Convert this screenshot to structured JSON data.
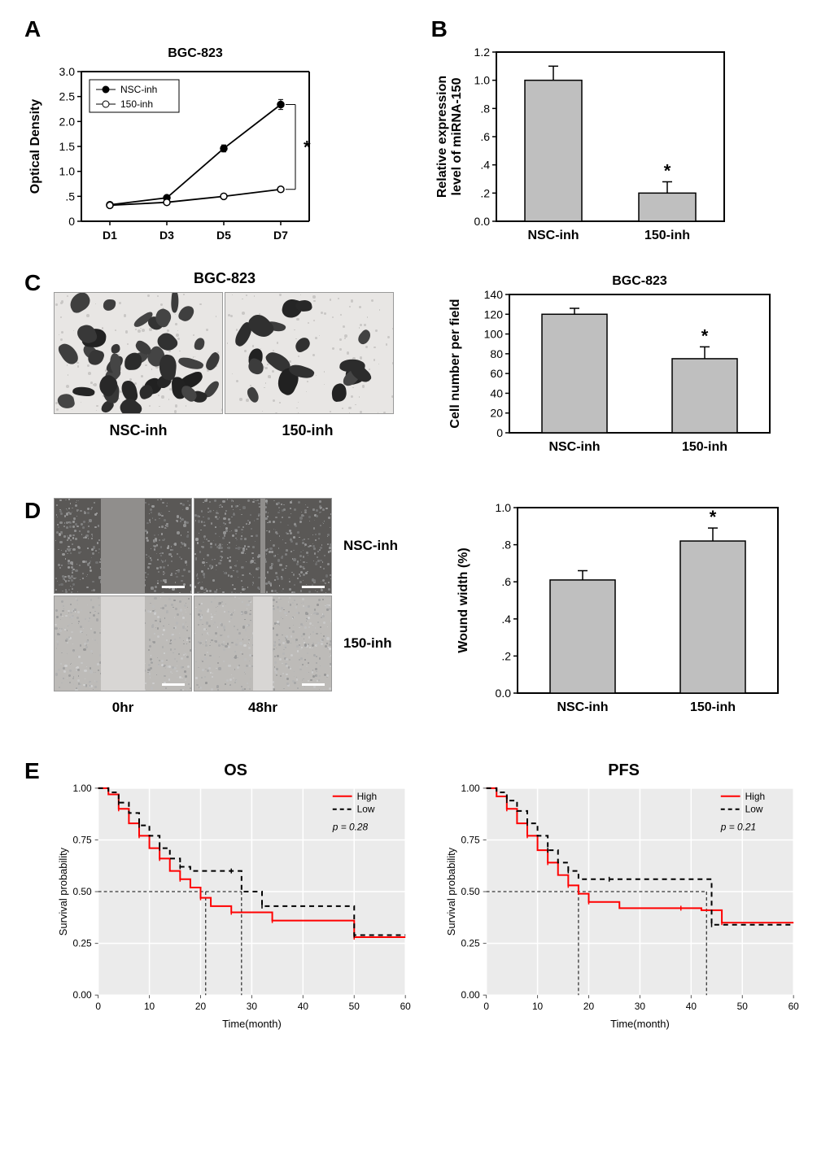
{
  "panelA": {
    "label": "A",
    "title": "BGC-823",
    "ylabel": "Optical Density",
    "x_categories": [
      "D1",
      "D3",
      "D5",
      "D7"
    ],
    "ylim": [
      0,
      3.0
    ],
    "yticks": [
      0,
      0.5,
      1.0,
      1.5,
      2.0,
      2.5,
      3.0
    ],
    "ytick_labels": [
      "0",
      ".5",
      "1.0",
      "1.5",
      "2.0",
      "2.5",
      "3.0"
    ],
    "series": [
      {
        "name": "NSC-inh",
        "marker": "filled-circle",
        "y": [
          0.33,
          0.47,
          1.46,
          2.34
        ],
        "err": [
          0.02,
          0.04,
          0.07,
          0.1
        ]
      },
      {
        "name": "150-inh",
        "marker": "open-circle",
        "y": [
          0.32,
          0.38,
          0.5,
          0.64
        ],
        "err": [
          0.02,
          0.02,
          0.02,
          0.02
        ]
      }
    ],
    "sig_marker": "*",
    "line_color": "#000000",
    "axis_fontsize": 14,
    "title_fontsize": 16,
    "label_fontsize": 16
  },
  "panelB": {
    "label": "B",
    "ylabel": "Relative expression\nlevel of miRNA-150",
    "x_categories": [
      "NSC-inh",
      "150-inh"
    ],
    "ylim": [
      0,
      1.2
    ],
    "yticks": [
      0,
      0.2,
      0.4,
      0.6,
      0.8,
      1.0,
      1.2
    ],
    "ytick_labels": [
      "0.0",
      ".2",
      ".4",
      ".6",
      ".8",
      "1.0",
      "1.2"
    ],
    "values": [
      1.0,
      0.2
    ],
    "errors": [
      0.1,
      0.08
    ],
    "sig_index": 1,
    "sig_marker": "*",
    "bar_color": "#bfbfbf",
    "bar_stroke": "#000000",
    "axis_fontsize": 14,
    "label_fontsize": 16
  },
  "panelC": {
    "label": "C",
    "image_title": "BGC-823",
    "image_labels": [
      "NSC-inh",
      "150-inh"
    ],
    "cell_density": [
      40,
      18
    ],
    "chart": {
      "title": "BGC-823",
      "ylabel": "Cell number per field",
      "x_categories": [
        "NSC-inh",
        "150-inh"
      ],
      "ylim": [
        0,
        140
      ],
      "yticks": [
        0,
        20,
        40,
        60,
        80,
        100,
        120,
        140
      ],
      "values": [
        120,
        75
      ],
      "errors": [
        6,
        12
      ],
      "sig_index": 1,
      "sig_marker": "*",
      "bar_color": "#bfbfbf",
      "bar_stroke": "#000000"
    }
  },
  "panelD": {
    "label": "D",
    "row_labels": [
      "NSC-inh",
      "150-inh"
    ],
    "col_labels": [
      "0hr",
      "48hr"
    ],
    "scratch_widths": [
      [
        0.32,
        0.04
      ],
      [
        0.32,
        0.14
      ]
    ],
    "chart": {
      "ylabel": "Wound width (%)",
      "x_categories": [
        "NSC-inh",
        "150-inh"
      ],
      "ylim": [
        0,
        1.0
      ],
      "yticks": [
        0,
        0.2,
        0.4,
        0.6,
        0.8,
        1.0
      ],
      "ytick_labels": [
        "0.0",
        ".2",
        ".4",
        ".6",
        ".8",
        "1.0"
      ],
      "values": [
        0.61,
        0.82
      ],
      "errors": [
        0.05,
        0.07
      ],
      "sig_index": 1,
      "sig_marker": "*",
      "bar_color": "#bfbfbf",
      "bar_stroke": "#000000"
    }
  },
  "panelE": {
    "label": "E",
    "plots": [
      {
        "title": "OS",
        "xlabel": "Time(month)",
        "ylabel": "Survival probability",
        "xlim": [
          0,
          60
        ],
        "xticks": [
          0,
          10,
          20,
          30,
          40,
          50,
          60
        ],
        "ylim": [
          0,
          1.0
        ],
        "yticks": [
          0,
          0.25,
          0.5,
          0.75,
          1.0
        ],
        "legend": {
          "High": {
            "color": "#ff0000",
            "dash": false
          },
          "Low": {
            "color": "#000000",
            "dash": true
          }
        },
        "p_text": "p = 0.28",
        "curves": {
          "High": [
            [
              0,
              1.0
            ],
            [
              2,
              0.97
            ],
            [
              4,
              0.9
            ],
            [
              6,
              0.83
            ],
            [
              8,
              0.77
            ],
            [
              10,
              0.71
            ],
            [
              12,
              0.66
            ],
            [
              14,
              0.6
            ],
            [
              16,
              0.56
            ],
            [
              18,
              0.52
            ],
            [
              20,
              0.47
            ],
            [
              22,
              0.43
            ],
            [
              26,
              0.4
            ],
            [
              30,
              0.4
            ],
            [
              34,
              0.36
            ],
            [
              46,
              0.36
            ],
            [
              50,
              0.28
            ],
            [
              60,
              0.28
            ]
          ],
          "Low": [
            [
              0,
              1.0
            ],
            [
              2,
              0.98
            ],
            [
              4,
              0.93
            ],
            [
              6,
              0.88
            ],
            [
              8,
              0.82
            ],
            [
              10,
              0.77
            ],
            [
              12,
              0.71
            ],
            [
              14,
              0.66
            ],
            [
              16,
              0.62
            ],
            [
              18,
              0.6
            ],
            [
              26,
              0.6
            ],
            [
              28,
              0.5
            ],
            [
              32,
              0.43
            ],
            [
              48,
              0.43
            ],
            [
              50,
              0.29
            ],
            [
              60,
              0.29
            ]
          ]
        },
        "median_drops": {
          "High": 21,
          "Low": 28
        }
      },
      {
        "title": "PFS",
        "xlabel": "Time(month)",
        "ylabel": "Survival probability",
        "xlim": [
          0,
          60
        ],
        "xticks": [
          0,
          10,
          20,
          30,
          40,
          50,
          60
        ],
        "ylim": [
          0,
          1.0
        ],
        "yticks": [
          0,
          0.25,
          0.5,
          0.75,
          1.0
        ],
        "legend": {
          "High": {
            "color": "#ff0000",
            "dash": false
          },
          "Low": {
            "color": "#000000",
            "dash": true
          }
        },
        "p_text": "p = 0.21",
        "curves": {
          "High": [
            [
              0,
              1.0
            ],
            [
              2,
              0.96
            ],
            [
              4,
              0.9
            ],
            [
              6,
              0.83
            ],
            [
              8,
              0.77
            ],
            [
              10,
              0.7
            ],
            [
              12,
              0.64
            ],
            [
              14,
              0.58
            ],
            [
              16,
              0.53
            ],
            [
              18,
              0.49
            ],
            [
              20,
              0.45
            ],
            [
              26,
              0.42
            ],
            [
              38,
              0.42
            ],
            [
              42,
              0.41
            ],
            [
              46,
              0.35
            ],
            [
              60,
              0.35
            ]
          ],
          "Low": [
            [
              0,
              1.0
            ],
            [
              2,
              0.98
            ],
            [
              4,
              0.94
            ],
            [
              6,
              0.89
            ],
            [
              8,
              0.83
            ],
            [
              10,
              0.77
            ],
            [
              12,
              0.7
            ],
            [
              14,
              0.64
            ],
            [
              16,
              0.6
            ],
            [
              18,
              0.56
            ],
            [
              24,
              0.56
            ],
            [
              42,
              0.56
            ],
            [
              44,
              0.34
            ],
            [
              60,
              0.34
            ]
          ]
        },
        "median_drops": {
          "High": 18,
          "Low": 43
        }
      }
    ],
    "grid_color": "#ffffff",
    "panel_bg": "#ebebeb"
  }
}
